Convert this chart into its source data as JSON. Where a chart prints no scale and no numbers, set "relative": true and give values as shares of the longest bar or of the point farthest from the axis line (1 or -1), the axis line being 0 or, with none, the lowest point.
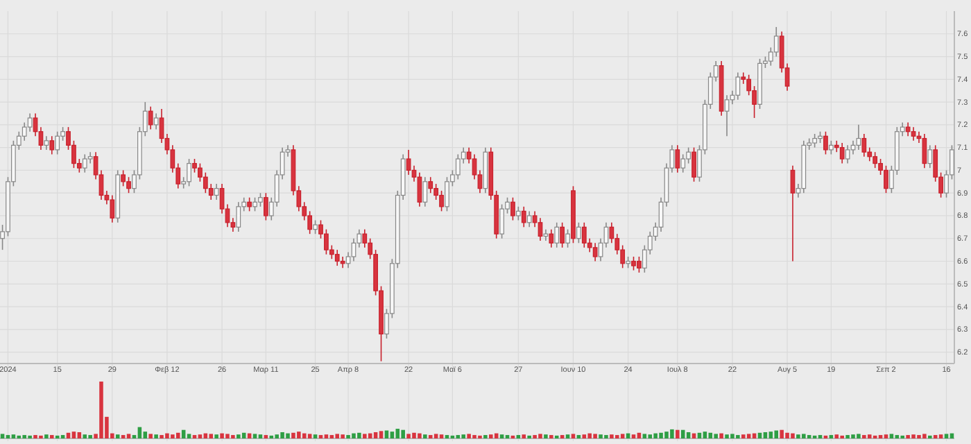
{
  "chart_data": [
    {
      "type": "candlestick",
      "grid": true,
      "ylim": [
        6.15,
        7.7
      ],
      "yticks": [
        6.2,
        6.3,
        6.4,
        6.5,
        6.6,
        6.7,
        6.8,
        6.9,
        7,
        7.1,
        7.2,
        7.3,
        7.4,
        7.5,
        7.6
      ],
      "categories": [
        null,
        "2024",
        null,
        null,
        null,
        null,
        null,
        null,
        null,
        null,
        "15",
        null,
        null,
        null,
        null,
        null,
        null,
        null,
        null,
        null,
        "29",
        null,
        null,
        null,
        null,
        null,
        null,
        null,
        null,
        null,
        "Φεβ 12",
        null,
        null,
        null,
        null,
        null,
        null,
        null,
        null,
        null,
        "26",
        null,
        null,
        null,
        null,
        null,
        null,
        null,
        "Μαρ 11",
        null,
        null,
        null,
        null,
        null,
        null,
        null,
        null,
        "25",
        null,
        null,
        null,
        null,
        null,
        "Απρ 8",
        null,
        null,
        null,
        null,
        null,
        null,
        null,
        null,
        null,
        null,
        "22",
        null,
        null,
        null,
        null,
        null,
        null,
        null,
        "Μαϊ 6",
        null,
        null,
        null,
        null,
        null,
        null,
        null,
        null,
        null,
        null,
        null,
        "27",
        null,
        null,
        null,
        null,
        null,
        null,
        null,
        null,
        null,
        "Ιουν 10",
        null,
        null,
        null,
        null,
        null,
        null,
        null,
        null,
        null,
        "24",
        null,
        null,
        null,
        null,
        null,
        null,
        null,
        null,
        "Ιουλ 8",
        null,
        null,
        null,
        null,
        null,
        null,
        null,
        null,
        null,
        "22",
        null,
        null,
        null,
        null,
        null,
        null,
        null,
        null,
        null,
        "Αυγ 5",
        null,
        null,
        null,
        null,
        null,
        null,
        null,
        "19",
        null,
        null,
        null,
        null,
        null,
        null,
        null,
        null,
        null,
        "Σεπ 2",
        null,
        null,
        null,
        null,
        null,
        null,
        null,
        null,
        null,
        null,
        "16",
        null
      ],
      "ohlc": [
        [
          6.7,
          6.76,
          6.65,
          6.73
        ],
        [
          6.73,
          6.97,
          6.71,
          6.95
        ],
        [
          6.95,
          7.13,
          6.93,
          7.11
        ],
        [
          7.11,
          7.17,
          7.09,
          7.15
        ],
        [
          7.15,
          7.21,
          7.13,
          7.19
        ],
        [
          7.19,
          7.25,
          7.17,
          7.23
        ],
        [
          7.23,
          7.25,
          7.15,
          7.17
        ],
        [
          7.17,
          7.19,
          7.09,
          7.11
        ],
        [
          7.11,
          7.15,
          7.09,
          7.13
        ],
        [
          7.13,
          7.15,
          7.07,
          7.09
        ],
        [
          7.09,
          7.17,
          7.07,
          7.15
        ],
        [
          7.15,
          7.19,
          7.13,
          7.17
        ],
        [
          7.17,
          7.19,
          7.09,
          7.11
        ],
        [
          7.11,
          7.13,
          7.01,
          7.03
        ],
        [
          7.03,
          7.05,
          6.99,
          7.01
        ],
        [
          7.01,
          7.07,
          6.99,
          7.05
        ],
        [
          7.05,
          7.08,
          7.03,
          7.06
        ],
        [
          7.06,
          7.08,
          6.96,
          6.98
        ],
        [
          6.98,
          7.0,
          6.87,
          6.89
        ],
        [
          6.89,
          6.91,
          6.85,
          6.87
        ],
        [
          6.87,
          6.89,
          6.77,
          6.79
        ],
        [
          6.79,
          7.0,
          6.77,
          6.98
        ],
        [
          6.98,
          7.0,
          6.93,
          6.95
        ],
        [
          6.95,
          6.97,
          6.9,
          6.92
        ],
        [
          6.92,
          7.0,
          6.9,
          6.98
        ],
        [
          6.98,
          7.19,
          6.96,
          7.17
        ],
        [
          7.17,
          7.3,
          7.15,
          7.26
        ],
        [
          7.26,
          7.28,
          7.18,
          7.2
        ],
        [
          7.2,
          7.25,
          7.18,
          7.23
        ],
        [
          7.23,
          7.27,
          7.12,
          7.14
        ],
        [
          7.14,
          7.16,
          7.07,
          7.09
        ],
        [
          7.09,
          7.11,
          6.99,
          7.01
        ],
        [
          7.01,
          7.03,
          6.92,
          6.94
        ],
        [
          6.94,
          6.97,
          6.92,
          6.95
        ],
        [
          6.95,
          7.05,
          6.93,
          7.03
        ],
        [
          7.03,
          7.05,
          6.99,
          7.01
        ],
        [
          7.01,
          7.03,
          6.95,
          6.97
        ],
        [
          6.97,
          6.99,
          6.9,
          6.92
        ],
        [
          6.92,
          6.94,
          6.87,
          6.89
        ],
        [
          6.89,
          6.94,
          6.87,
          6.92
        ],
        [
          6.92,
          6.94,
          6.81,
          6.83
        ],
        [
          6.83,
          6.85,
          6.75,
          6.77
        ],
        [
          6.77,
          6.79,
          6.73,
          6.75
        ],
        [
          6.75,
          6.86,
          6.73,
          6.84
        ],
        [
          6.84,
          6.88,
          6.82,
          6.86
        ],
        [
          6.86,
          6.88,
          6.82,
          6.84
        ],
        [
          6.84,
          6.88,
          6.82,
          6.86
        ],
        [
          6.86,
          6.9,
          6.84,
          6.88
        ],
        [
          6.88,
          6.9,
          6.78,
          6.8
        ],
        [
          6.8,
          6.88,
          6.78,
          6.86
        ],
        [
          6.86,
          7.0,
          6.84,
          6.98
        ],
        [
          6.98,
          7.1,
          6.96,
          7.08
        ],
        [
          7.08,
          7.11,
          7.06,
          7.09
        ],
        [
          7.09,
          7.11,
          6.89,
          6.91
        ],
        [
          6.91,
          6.93,
          6.82,
          6.84
        ],
        [
          6.84,
          6.86,
          6.78,
          6.8
        ],
        [
          6.8,
          6.82,
          6.72,
          6.74
        ],
        [
          6.74,
          6.78,
          6.72,
          6.76
        ],
        [
          6.76,
          6.78,
          6.7,
          6.72
        ],
        [
          6.72,
          6.74,
          6.63,
          6.65
        ],
        [
          6.65,
          6.67,
          6.61,
          6.63
        ],
        [
          6.63,
          6.65,
          6.58,
          6.6
        ],
        [
          6.6,
          6.62,
          6.57,
          6.59
        ],
        [
          6.59,
          6.64,
          6.57,
          6.62
        ],
        [
          6.62,
          6.7,
          6.6,
          6.68
        ],
        [
          6.68,
          6.74,
          6.66,
          6.72
        ],
        [
          6.72,
          6.74,
          6.66,
          6.68
        ],
        [
          6.68,
          6.7,
          6.61,
          6.63
        ],
        [
          6.63,
          6.65,
          6.45,
          6.47
        ],
        [
          6.47,
          6.49,
          6.16,
          6.28
        ],
        [
          6.28,
          6.39,
          6.26,
          6.37
        ],
        [
          6.37,
          6.61,
          6.35,
          6.59
        ],
        [
          6.59,
          6.91,
          6.57,
          6.89
        ],
        [
          6.89,
          7.07,
          6.87,
          7.05
        ],
        [
          7.05,
          7.09,
          6.98,
          7.0
        ],
        [
          7.0,
          7.02,
          6.95,
          6.97
        ],
        [
          6.97,
          6.99,
          6.84,
          6.86
        ],
        [
          6.86,
          6.97,
          6.84,
          6.95
        ],
        [
          6.95,
          6.97,
          6.9,
          6.92
        ],
        [
          6.92,
          6.94,
          6.87,
          6.89
        ],
        [
          6.89,
          6.91,
          6.82,
          6.84
        ],
        [
          6.84,
          6.97,
          6.82,
          6.95
        ],
        [
          6.95,
          7.0,
          6.93,
          6.98
        ],
        [
          6.98,
          7.07,
          6.96,
          7.05
        ],
        [
          7.05,
          7.1,
          7.03,
          7.08
        ],
        [
          7.08,
          7.1,
          7.03,
          7.05
        ],
        [
          7.05,
          7.07,
          6.96,
          6.98
        ],
        [
          6.98,
          7.0,
          6.9,
          6.92
        ],
        [
          6.92,
          7.1,
          6.9,
          7.08
        ],
        [
          7.08,
          7.1,
          6.87,
          6.89
        ],
        [
          6.89,
          6.91,
          6.7,
          6.72
        ],
        [
          6.72,
          6.85,
          6.7,
          6.83
        ],
        [
          6.83,
          6.88,
          6.81,
          6.86
        ],
        [
          6.86,
          6.88,
          6.78,
          6.8
        ],
        [
          6.8,
          6.84,
          6.78,
          6.82
        ],
        [
          6.82,
          6.84,
          6.75,
          6.77
        ],
        [
          6.77,
          6.82,
          6.75,
          6.8
        ],
        [
          6.8,
          6.82,
          6.75,
          6.77
        ],
        [
          6.77,
          6.79,
          6.69,
          6.71
        ],
        [
          6.71,
          6.74,
          6.69,
          6.72
        ],
        [
          6.72,
          6.74,
          6.66,
          6.68
        ],
        [
          6.68,
          6.77,
          6.66,
          6.75
        ],
        [
          6.75,
          6.77,
          6.66,
          6.68
        ],
        [
          6.68,
          6.74,
          6.66,
          6.72
        ],
        [
          6.91,
          6.93,
          6.68,
          6.7
        ],
        [
          6.7,
          6.77,
          6.68,
          6.75
        ],
        [
          6.75,
          6.77,
          6.66,
          6.68
        ],
        [
          6.68,
          6.7,
          6.64,
          6.66
        ],
        [
          6.66,
          6.68,
          6.6,
          6.62
        ],
        [
          6.62,
          6.7,
          6.6,
          6.68
        ],
        [
          6.68,
          6.77,
          6.66,
          6.75
        ],
        [
          6.75,
          6.77,
          6.68,
          6.7
        ],
        [
          6.7,
          6.72,
          6.63,
          6.65
        ],
        [
          6.65,
          6.67,
          6.57,
          6.59
        ],
        [
          6.59,
          6.62,
          6.57,
          6.6
        ],
        [
          6.6,
          6.62,
          6.56,
          6.58
        ],
        [
          6.6,
          6.62,
          6.55,
          6.57
        ],
        [
          6.57,
          6.67,
          6.55,
          6.65
        ],
        [
          6.65,
          6.73,
          6.63,
          6.71
        ],
        [
          6.71,
          6.77,
          6.69,
          6.75
        ],
        [
          6.75,
          6.88,
          6.73,
          6.86
        ],
        [
          6.86,
          7.03,
          6.84,
          7.01
        ],
        [
          7.01,
          7.11,
          6.99,
          7.09
        ],
        [
          7.09,
          7.11,
          6.99,
          7.01
        ],
        [
          7.01,
          7.07,
          6.99,
          7.05
        ],
        [
          7.05,
          7.1,
          7.03,
          7.08
        ],
        [
          7.08,
          7.1,
          6.95,
          6.97
        ],
        [
          6.97,
          7.11,
          6.95,
          7.09
        ],
        [
          7.09,
          7.31,
          7.07,
          7.29
        ],
        [
          7.29,
          7.43,
          7.27,
          7.41
        ],
        [
          7.41,
          7.48,
          7.39,
          7.46
        ],
        [
          7.46,
          7.48,
          7.24,
          7.26
        ],
        [
          7.26,
          7.33,
          7.15,
          7.31
        ],
        [
          7.31,
          7.35,
          7.29,
          7.33
        ],
        [
          7.33,
          7.43,
          7.31,
          7.41
        ],
        [
          7.41,
          7.43,
          7.38,
          7.4
        ],
        [
          7.4,
          7.42,
          7.33,
          7.35
        ],
        [
          7.35,
          7.37,
          7.23,
          7.29
        ],
        [
          7.29,
          7.49,
          7.27,
          7.47
        ],
        [
          7.47,
          7.5,
          7.45,
          7.48
        ],
        [
          7.48,
          7.54,
          7.46,
          7.52
        ],
        [
          7.52,
          7.63,
          7.5,
          7.59
        ],
        [
          7.59,
          7.61,
          7.43,
          7.45
        ],
        [
          7.45,
          7.47,
          7.35,
          7.37
        ],
        [
          7.0,
          7.02,
          6.6,
          6.9
        ],
        [
          6.9,
          6.94,
          6.88,
          6.92
        ],
        [
          6.92,
          7.13,
          6.9,
          7.11
        ],
        [
          7.11,
          7.14,
          7.09,
          7.12
        ],
        [
          7.12,
          7.16,
          7.1,
          7.14
        ],
        [
          7.14,
          7.17,
          7.12,
          7.15
        ],
        [
          7.15,
          7.17,
          7.07,
          7.09
        ],
        [
          7.09,
          7.13,
          7.07,
          7.11
        ],
        [
          7.11,
          7.13,
          7.08,
          7.1
        ],
        [
          7.1,
          7.12,
          7.03,
          7.05
        ],
        [
          7.05,
          7.11,
          7.03,
          7.09
        ],
        [
          7.09,
          7.13,
          7.07,
          7.11
        ],
        [
          7.11,
          7.2,
          7.09,
          7.14
        ],
        [
          7.14,
          7.16,
          7.06,
          7.08
        ],
        [
          7.08,
          7.1,
          7.04,
          7.06
        ],
        [
          7.06,
          7.08,
          7.01,
          7.03
        ],
        [
          7.03,
          7.05,
          6.98,
          7.0
        ],
        [
          7.0,
          7.02,
          6.9,
          6.92
        ],
        [
          6.92,
          7.02,
          6.9,
          7.0
        ],
        [
          7.0,
          7.19,
          6.98,
          7.17
        ],
        [
          7.17,
          7.21,
          7.15,
          7.19
        ],
        [
          7.19,
          7.21,
          7.15,
          7.17
        ],
        [
          7.17,
          7.19,
          7.13,
          7.15
        ],
        [
          7.15,
          7.17,
          7.12,
          7.14
        ],
        [
          7.14,
          7.16,
          7.01,
          7.03
        ],
        [
          7.03,
          7.11,
          7.01,
          7.09
        ],
        [
          7.09,
          7.11,
          6.95,
          6.97
        ],
        [
          6.97,
          6.99,
          6.88,
          6.9
        ],
        [
          6.9,
          7.0,
          6.88,
          6.98
        ],
        [
          6.98,
          7.11,
          6.96,
          7.09
        ]
      ]
    },
    {
      "type": "bar",
      "relative": true,
      "categories": [
        null,
        null,
        null,
        null,
        null,
        null,
        null,
        null,
        null,
        null,
        null,
        null,
        null,
        null,
        null,
        null,
        null,
        null,
        null,
        null,
        null,
        null,
        null,
        null,
        null,
        null,
        null,
        null,
        null,
        null,
        null,
        null,
        null,
        null,
        null,
        null,
        null,
        null,
        null,
        null,
        null,
        null,
        null,
        null,
        null,
        null,
        null,
        null,
        null,
        null,
        null,
        null,
        null,
        null,
        null,
        null,
        null,
        null,
        null,
        null,
        null,
        null,
        null,
        null,
        null,
        null,
        null,
        null,
        null,
        null,
        null,
        null,
        null,
        null,
        null,
        null,
        null,
        null,
        null,
        null,
        null,
        null,
        null,
        null,
        null,
        null,
        null,
        null,
        null,
        null,
        null,
        null,
        null,
        null,
        null,
        null,
        null,
        null,
        null,
        null,
        null,
        null,
        null,
        null,
        null,
        null,
        null,
        null,
        null,
        null,
        null,
        null,
        null,
        null,
        null,
        null,
        null,
        null,
        null,
        null,
        null,
        null,
        null,
        null,
        null,
        null,
        null,
        null,
        null,
        null,
        null,
        null,
        null,
        null,
        null,
        null,
        null,
        null,
        null,
        null,
        null,
        null,
        null,
        null,
        null,
        null,
        null,
        null,
        null,
        null,
        null,
        null,
        null,
        null,
        null,
        null,
        null,
        null,
        null,
        null,
        null,
        null,
        null,
        null,
        null,
        null,
        null,
        null,
        null,
        null,
        null,
        null,
        null,
        null
      ],
      "values": [
        0.08,
        0.06,
        0.07,
        0.05,
        0.06,
        0.05,
        0.06,
        0.05,
        0.07,
        0.06,
        0.05,
        0.06,
        0.1,
        0.12,
        0.11,
        0.07,
        0.06,
        0.08,
        1,
        0.38,
        0.09,
        0.07,
        0.06,
        0.08,
        0.06,
        0.2,
        0.12,
        0.08,
        0.07,
        0.06,
        0.09,
        0.07,
        0.1,
        0.15,
        0.08,
        0.06,
        0.07,
        0.09,
        0.08,
        0.07,
        0.09,
        0.08,
        0.06,
        0.07,
        0.1,
        0.09,
        0.08,
        0.07,
        0.06,
        0.05,
        0.07,
        0.11,
        0.09,
        0.1,
        0.12,
        0.09,
        0.08,
        0.07,
        0.06,
        0.07,
        0.06,
        0.08,
        0.07,
        0.06,
        0.09,
        0.1,
        0.08,
        0.09,
        0.11,
        0.13,
        0.14,
        0.12,
        0.17,
        0.15,
        0.08,
        0.1,
        0.09,
        0.07,
        0.06,
        0.08,
        0.07,
        0.06,
        0.05,
        0.06,
        0.07,
        0.08,
        0.06,
        0.05,
        0.06,
        0.07,
        0.09,
        0.07,
        0.06,
        0.05,
        0.06,
        0.07,
        0.05,
        0.06,
        0.08,
        0.07,
        0.06,
        0.05,
        0.06,
        0.07,
        0.08,
        0.06,
        0.07,
        0.09,
        0.08,
        0.07,
        0.06,
        0.07,
        0.06,
        0.08,
        0.09,
        0.07,
        0.1,
        0.08,
        0.07,
        0.09,
        0.1,
        0.12,
        0.16,
        0.15,
        0.15,
        0.11,
        0.09,
        0.1,
        0.12,
        0.1,
        0.08,
        0.09,
        0.07,
        0.08,
        0.06,
        0.07,
        0.08,
        0.09,
        0.1,
        0.11,
        0.12,
        0.14,
        0.15,
        0.1,
        0.09,
        0.07,
        0.08,
        0.06,
        0.05,
        0.06,
        0.05,
        0.06,
        0.07,
        0.05,
        0.06,
        0.07,
        0.08,
        0.06,
        0.07,
        0.05,
        0.06,
        0.07,
        0.08,
        0.06,
        0.05,
        0.06,
        0.07,
        0.06,
        0.08,
        0.05,
        0.06,
        0.07,
        0.08,
        0.09
      ],
      "colors": [
        "#2e9e44",
        "#2e9e44",
        "#2e9e44",
        "#2e9e44",
        "#2e9e44",
        "#2e9e44",
        "#d8343f",
        "#d8343f",
        "#2e9e44",
        "#d8343f",
        "#2e9e44",
        "#2e9e44",
        "#d8343f",
        "#d8343f",
        "#d8343f",
        "#2e9e44",
        "#2e9e44",
        "#d8343f",
        "#d8343f",
        "#d8343f",
        "#d8343f",
        "#2e9e44",
        "#d8343f",
        "#d8343f",
        "#2e9e44",
        "#2e9e44",
        "#2e9e44",
        "#d8343f",
        "#2e9e44",
        "#d8343f",
        "#d8343f",
        "#d8343f",
        "#d8343f",
        "#2e9e44",
        "#2e9e44",
        "#d8343f",
        "#d8343f",
        "#d8343f",
        "#d8343f",
        "#2e9e44",
        "#d8343f",
        "#d8343f",
        "#d8343f",
        "#2e9e44",
        "#2e9e44",
        "#d8343f",
        "#2e9e44",
        "#2e9e44",
        "#d8343f",
        "#2e9e44",
        "#2e9e44",
        "#2e9e44",
        "#2e9e44",
        "#d8343f",
        "#d8343f",
        "#d8343f",
        "#d8343f",
        "#2e9e44",
        "#d8343f",
        "#d8343f",
        "#d8343f",
        "#d8343f",
        "#d8343f",
        "#2e9e44",
        "#2e9e44",
        "#2e9e44",
        "#d8343f",
        "#d8343f",
        "#d8343f",
        "#d8343f",
        "#2e9e44",
        "#2e9e44",
        "#2e9e44",
        "#2e9e44",
        "#d8343f",
        "#d8343f",
        "#d8343f",
        "#2e9e44",
        "#d8343f",
        "#d8343f",
        "#d8343f",
        "#2e9e44",
        "#2e9e44",
        "#2e9e44",
        "#2e9e44",
        "#d8343f",
        "#d8343f",
        "#d8343f",
        "#2e9e44",
        "#d8343f",
        "#d8343f",
        "#2e9e44",
        "#2e9e44",
        "#d8343f",
        "#2e9e44",
        "#d8343f",
        "#2e9e44",
        "#d8343f",
        "#d8343f",
        "#2e9e44",
        "#d8343f",
        "#2e9e44",
        "#d8343f",
        "#2e9e44",
        "#d8343f",
        "#2e9e44",
        "#d8343f",
        "#d8343f",
        "#d8343f",
        "#2e9e44",
        "#2e9e44",
        "#d8343f",
        "#d8343f",
        "#d8343f",
        "#2e9e44",
        "#d8343f",
        "#d8343f",
        "#2e9e44",
        "#2e9e44",
        "#2e9e44",
        "#2e9e44",
        "#2e9e44",
        "#2e9e44",
        "#d8343f",
        "#2e9e44",
        "#2e9e44",
        "#d8343f",
        "#2e9e44",
        "#2e9e44",
        "#2e9e44",
        "#2e9e44",
        "#d8343f",
        "#2e9e44",
        "#2e9e44",
        "#2e9e44",
        "#d8343f",
        "#d8343f",
        "#d8343f",
        "#2e9e44",
        "#2e9e44",
        "#2e9e44",
        "#2e9e44",
        "#d8343f",
        "#d8343f",
        "#d8343f",
        "#2e9e44",
        "#2e9e44",
        "#2e9e44",
        "#2e9e44",
        "#2e9e44",
        "#d8343f",
        "#2e9e44",
        "#d8343f",
        "#d8343f",
        "#2e9e44",
        "#2e9e44",
        "#2e9e44",
        "#d8343f",
        "#d8343f",
        "#d8343f",
        "#d8343f",
        "#d8343f",
        "#2e9e44",
        "#2e9e44",
        "#2e9e44",
        "#d8343f",
        "#d8343f",
        "#d8343f",
        "#d8343f",
        "#2e9e44",
        "#d8343f",
        "#d8343f",
        "#2e9e44",
        "#2e9e44"
      ]
    }
  ]
}
